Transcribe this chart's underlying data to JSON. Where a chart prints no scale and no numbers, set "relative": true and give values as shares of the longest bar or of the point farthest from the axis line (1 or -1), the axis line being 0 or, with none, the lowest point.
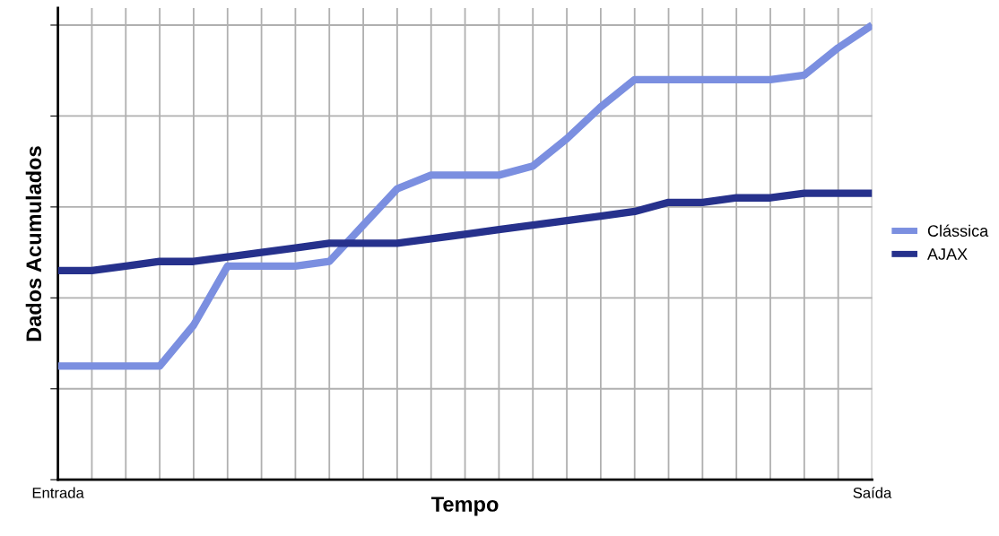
{
  "chart_data": {
    "type": "line",
    "relative": true,
    "xlabel": "Tempo",
    "ylabel": "Dados Acumulados",
    "categories": [
      "Entrada",
      null,
      null,
      null,
      null,
      null,
      null,
      null,
      null,
      null,
      null,
      null,
      null,
      null,
      null,
      null,
      null,
      null,
      null,
      null,
      null,
      null,
      null,
      null,
      "Saída"
    ],
    "series": [
      {
        "name": "Clássica",
        "color": "#7b8fe0",
        "values": [
          0.25,
          0.25,
          0.25,
          0.25,
          0.34,
          0.47,
          0.47,
          0.47,
          0.48,
          0.56,
          0.64,
          0.67,
          0.67,
          0.67,
          0.69,
          0.75,
          0.82,
          0.88,
          0.88,
          0.88,
          0.88,
          0.88,
          0.89,
          0.95,
          1.0
        ]
      },
      {
        "name": "AJAX",
        "color": "#26318c",
        "values": [
          0.46,
          0.46,
          0.47,
          0.48,
          0.48,
          0.49,
          0.5,
          0.51,
          0.52,
          0.52,
          0.52,
          0.53,
          0.54,
          0.55,
          0.56,
          0.57,
          0.58,
          0.59,
          0.61,
          0.61,
          0.62,
          0.62,
          0.63,
          0.63,
          0.63
        ]
      }
    ],
    "grid": true,
    "legend": "right",
    "marker": "none",
    "line_style": "solid"
  }
}
